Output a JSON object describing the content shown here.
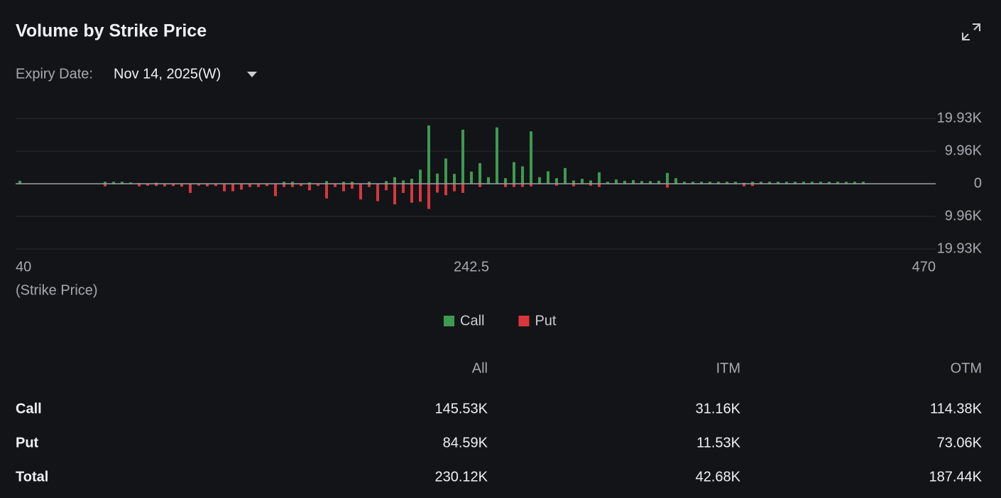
{
  "header": {
    "title": "Volume by Strike Price",
    "expiry_label": "Expiry Date:",
    "expiry_value": "Nov 14, 2025(W)"
  },
  "chart_data": {
    "type": "bar",
    "x_label": "(Strike Price)",
    "categories": [
      "40",
      null,
      null,
      null,
      null,
      null,
      null,
      null,
      null,
      null,
      null,
      null,
      null,
      null,
      null,
      null,
      null,
      null,
      null,
      null,
      null,
      null,
      null,
      null,
      null,
      null,
      null,
      null,
      null,
      null,
      null,
      null,
      null,
      null,
      null,
      null,
      null,
      null,
      null,
      null,
      null,
      null,
      null,
      null,
      null,
      null,
      null,
      null,
      null,
      null,
      null,
      null,
      null,
      "242.5",
      null,
      null,
      null,
      null,
      null,
      null,
      null,
      null,
      null,
      null,
      null,
      null,
      null,
      null,
      null,
      null,
      null,
      null,
      null,
      null,
      null,
      null,
      null,
      null,
      null,
      null,
      null,
      null,
      null,
      null,
      null,
      null,
      null,
      null,
      null,
      null,
      null,
      null,
      null,
      null,
      null,
      null,
      null,
      null,
      null,
      null,
      null,
      null,
      null,
      null,
      null,
      null,
      null,
      "470"
    ],
    "series": [
      {
        "name": "Call",
        "color": "#3d9a50",
        "values": [
          900,
          null,
          null,
          null,
          null,
          null,
          null,
          null,
          null,
          null,
          600,
          600,
          600,
          400,
          200,
          null,
          300,
          null,
          null,
          null,
          null,
          null,
          null,
          null,
          null,
          null,
          null,
          null,
          null,
          null,
          null,
          600,
          600,
          null,
          400,
          null,
          800,
          null,
          600,
          600,
          null,
          600,
          null,
          800,
          2000,
          1000,
          1500,
          4300,
          17800,
          3100,
          7700,
          3000,
          16500,
          3700,
          6300,
          2000,
          17200,
          1700,
          6600,
          5300,
          16000,
          2000,
          3800,
          1700,
          4800,
          1000,
          1500,
          1000,
          3500,
          600,
          1300,
          900,
          1100,
          800,
          800,
          900,
          3300,
          1700,
          600,
          600,
          600,
          600,
          600,
          600,
          600,
          300,
          600,
          600,
          600,
          600,
          600,
          600,
          600,
          600,
          600,
          600,
          600,
          600,
          600,
          600,
          null,
          null,
          null,
          null,
          null,
          null,
          null,
          null
        ]
      },
      {
        "name": "Put",
        "color": "#d9363e",
        "values": [
          null,
          null,
          null,
          null,
          null,
          null,
          null,
          null,
          null,
          null,
          -800,
          null,
          null,
          null,
          -800,
          -600,
          -700,
          -800,
          -700,
          -900,
          -2800,
          -600,
          -800,
          -700,
          -2300,
          -2300,
          -1800,
          -1000,
          -1000,
          -700,
          -3800,
          -1000,
          -1000,
          -700,
          -2000,
          -700,
          -4500,
          -1000,
          -2300,
          -1500,
          -4800,
          -1000,
          -5300,
          -2000,
          -6300,
          -2800,
          -5800,
          -5500,
          -7700,
          -2700,
          -3500,
          -2300,
          -2800,
          null,
          -1000,
          null,
          null,
          -1000,
          -1000,
          -1000,
          -800,
          null,
          null,
          -600,
          null,
          -800,
          null,
          -600,
          -1000,
          null,
          null,
          null,
          null,
          null,
          null,
          null,
          -1200,
          null,
          null,
          null,
          null,
          null,
          null,
          null,
          null,
          -800,
          -700,
          null,
          null,
          null,
          null,
          null,
          null,
          null,
          null,
          null,
          null,
          null,
          null,
          null,
          null,
          null,
          null,
          null,
          null,
          null,
          null,
          null
        ]
      }
    ],
    "ylim": [
      -19930,
      19930
    ],
    "yticks": [
      {
        "value": 19930,
        "label": "19.93K"
      },
      {
        "value": 9960,
        "label": "9.96K"
      },
      0,
      {
        "value": -9960,
        "label": "9.96K"
      },
      {
        "value": -19930,
        "label": "19.93K"
      }
    ],
    "grid": true,
    "legend": "bottom"
  },
  "table": {
    "columns": [
      "All",
      "ITM",
      "OTM"
    ],
    "rows": [
      [
        "Call",
        "145.53K",
        "31.16K",
        "114.38K"
      ],
      [
        "Put",
        "84.59K",
        "11.53K",
        "73.06K"
      ],
      [
        "Total",
        "230.12K",
        "42.68K",
        "187.44K"
      ]
    ]
  }
}
